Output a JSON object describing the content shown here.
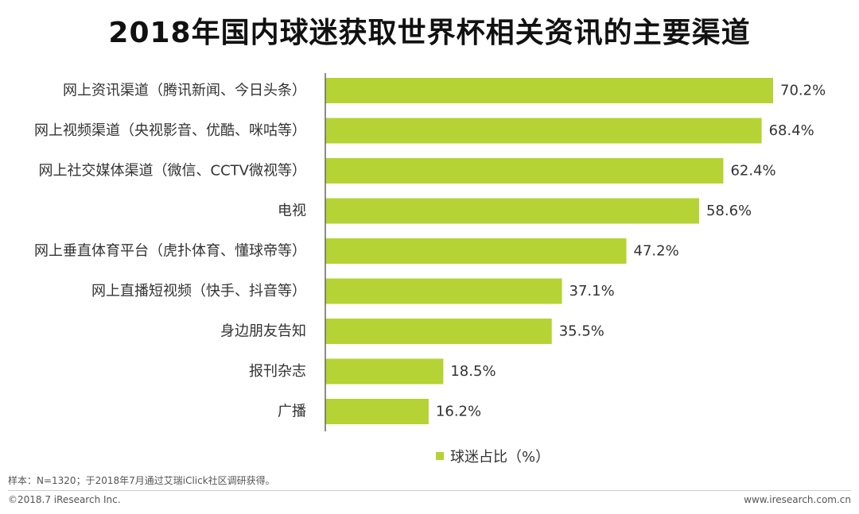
{
  "chart_data": {
    "type": "bar",
    "orientation": "horizontal",
    "title": "2018年国内球迷获取世界杯相关资讯的主要渠道",
    "categories": [
      "网上资讯渠道（腾讯新闻、今日头条）",
      "网上视频渠道（央视影音、优酷、咪咕等）",
      "网上社交媒体渠道（微信、CCTV微视等）",
      "电视",
      "网上垂直体育平台（虎扑体育、懂球帝等）",
      "网上直播短视频（快手、抖音等）",
      "身边朋友告知",
      "报刊杂志",
      "广播"
    ],
    "values": [
      70.2,
      68.4,
      62.4,
      58.6,
      47.2,
      37.1,
      35.5,
      18.5,
      16.2
    ],
    "value_labels": [
      "70.2%",
      "68.4%",
      "62.4%",
      "58.6%",
      "47.2%",
      "37.1%",
      "35.5%",
      "18.5%",
      "16.2%"
    ],
    "series_name": "球迷占比（%）",
    "xlim": [
      0,
      70.2
    ],
    "grid": false,
    "legend_position": "bottom",
    "bar_color": "#b5d334"
  },
  "footnote": "样本：N=1320；于2018年7月通过艾瑞iClick社区调研获得。",
  "copyright": "©2018.7 iResearch Inc.",
  "website": "www.iresearch.com.cn"
}
